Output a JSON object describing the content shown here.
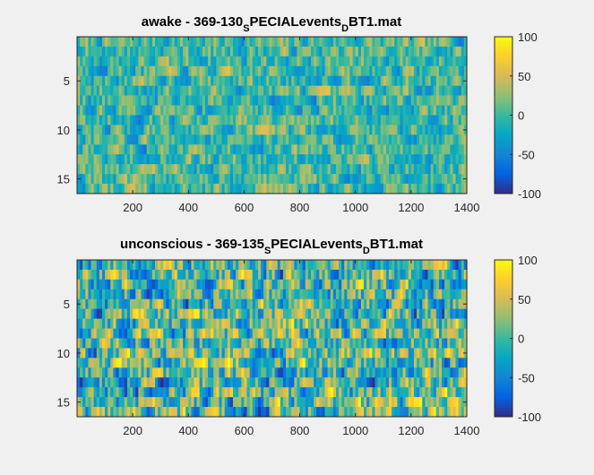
{
  "figure": {
    "background": "#f0f0f0"
  },
  "chart_data": [
    {
      "type": "heatmap",
      "title_main": "awake - 369-130",
      "title_sub1": "S",
      "title_mid": "PECIALevents",
      "title_sub2": "D",
      "title_end": "BT1.mat",
      "xlim": [
        0,
        1400
      ],
      "ylim": [
        0.5,
        16.5
      ],
      "x_ticks": [
        200,
        400,
        600,
        800,
        1000,
        1200,
        1400
      ],
      "x_tick_labels": [
        "200",
        "400",
        "600",
        "800",
        "1000",
        "1200",
        "1400"
      ],
      "y_ticks": [
        5,
        10,
        15
      ],
      "y_tick_labels": [
        "5",
        "10",
        "15"
      ],
      "rows": 16,
      "colorbar": {
        "range": [
          -100,
          100
        ],
        "ticks": [
          100,
          50,
          0,
          -50,
          -100
        ],
        "tick_labels": [
          "100",
          "50",
          "0",
          "-50",
          "-100"
        ],
        "colormap": "parula"
      },
      "seed": 7,
      "amplitude": 45,
      "grid": false,
      "legend": "none"
    },
    {
      "type": "heatmap",
      "title_main": "unconscious - 369-135",
      "title_sub1": "S",
      "title_mid": "PECIALevents",
      "title_sub2": "D",
      "title_end": "BT1.mat",
      "xlim": [
        0,
        1400
      ],
      "ylim": [
        0.5,
        16.5
      ],
      "x_ticks": [
        200,
        400,
        600,
        800,
        1000,
        1200,
        1400
      ],
      "x_tick_labels": [
        "200",
        "400",
        "600",
        "800",
        "1000",
        "1200",
        "1400"
      ],
      "y_ticks": [
        5,
        10,
        15
      ],
      "y_tick_labels": [
        "5",
        "10",
        "15"
      ],
      "rows": 16,
      "colorbar": {
        "range": [
          -100,
          100
        ],
        "ticks": [
          100,
          50,
          0,
          -50,
          -100
        ],
        "tick_labels": [
          "100",
          "50",
          "0",
          "-50",
          "-100"
        ],
        "colormap": "parula"
      },
      "seed": 19,
      "amplitude": 80,
      "grid": false,
      "legend": "none"
    }
  ]
}
